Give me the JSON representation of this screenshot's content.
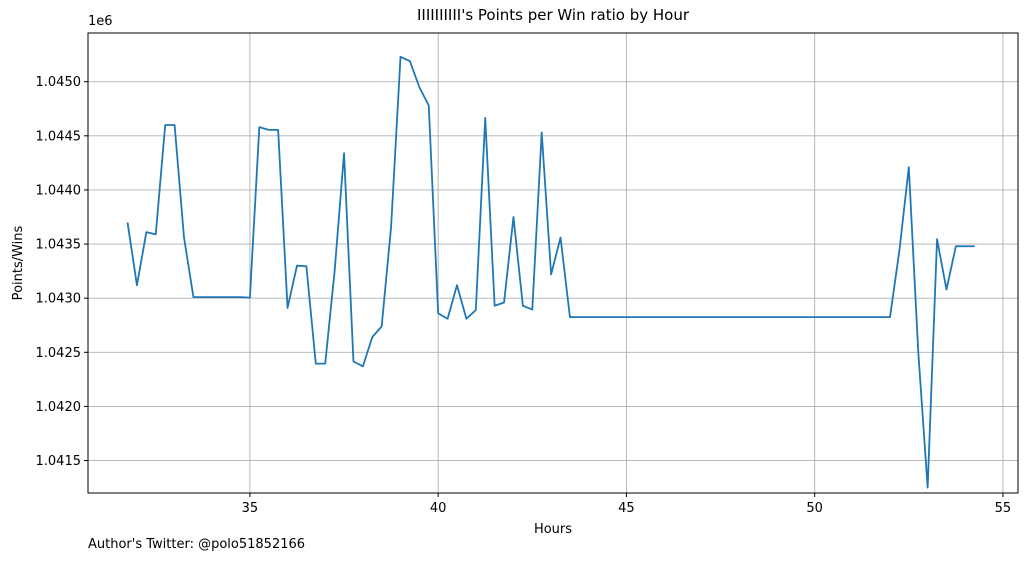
{
  "chart_data": {
    "type": "line",
    "title": "IIIIIIIIII's Points per Win ratio by Hour",
    "xlabel": "Hours",
    "ylabel": "Points/Wins",
    "y_offset_label": "1e6",
    "footer": "Author's Twitter: @polo51852166",
    "grid": true,
    "line_color": "#1f77b4",
    "xlim": [
      30.7,
      55.4
    ],
    "ylim": [
      1041200,
      1045450
    ],
    "x_ticks": [
      35,
      40,
      45,
      50,
      55
    ],
    "x_tick_labels": [
      "35",
      "40",
      "45",
      "50",
      "55"
    ],
    "y_ticks": [
      1041500,
      1042000,
      1042500,
      1043000,
      1043500,
      1044000,
      1044500,
      1045000
    ],
    "y_tick_labels": [
      "1.0415",
      "1.0420",
      "1.0425",
      "1.0430",
      "1.0435",
      "1.0440",
      "1.0445",
      "1.0450"
    ],
    "series": [
      {
        "x": [
          31.75,
          32.0,
          32.25,
          32.5,
          32.75,
          33.0,
          33.25,
          33.5,
          33.75,
          34.0,
          34.25,
          34.5,
          34.75,
          35.0,
          35.25,
          35.5,
          35.75,
          36.0,
          36.25,
          36.5,
          36.75,
          37.0,
          37.25,
          37.5,
          37.75,
          38.0,
          38.25,
          38.5,
          38.75,
          39.0,
          39.25,
          39.5,
          39.75,
          40.0,
          40.25,
          40.5,
          40.75,
          41.0,
          41.25,
          41.5,
          41.75,
          42.0,
          42.25,
          42.5,
          42.75,
          43.0,
          43.25,
          43.5,
          52.0,
          52.25,
          52.5,
          52.75,
          53.0,
          53.25,
          53.5,
          53.75,
          54.0,
          54.25
        ],
        "y": [
          1043700,
          1043120,
          1043610,
          1043590,
          1044600,
          1044600,
          1043560,
          1043010,
          1043010,
          1043010,
          1043010,
          1043010,
          1043010,
          1043005,
          1044580,
          1044555,
          1044555,
          1042910,
          1043300,
          1043295,
          1042395,
          1042395,
          1043250,
          1044340,
          1042415,
          1042370,
          1042640,
          1042740,
          1043660,
          1045230,
          1045190,
          1044950,
          1044780,
          1042860,
          1042810,
          1043120,
          1042810,
          1042890,
          1044665,
          1042930,
          1042960,
          1043750,
          1042930,
          1042895,
          1044530,
          1043220,
          1043560,
          1042825,
          1042825,
          1043440,
          1044210,
          1042510,
          1041250,
          1043545,
          1043080,
          1043480,
          1043480,
          1043480
        ]
      }
    ]
  }
}
